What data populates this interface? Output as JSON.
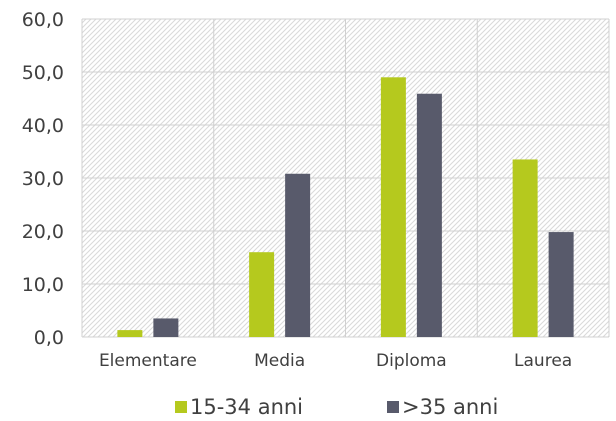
{
  "chart_data": {
    "type": "bar",
    "categories": [
      "Elementare",
      "Media",
      "Diploma",
      "Laurea"
    ],
    "series": [
      {
        "name": "15-34 anni",
        "color": "#b5c91e",
        "values": [
          1.3,
          16.0,
          49.0,
          33.5
        ]
      },
      {
        "name": ">35 anni",
        "color": "#585a6b",
        "values": [
          3.5,
          30.8,
          45.9,
          19.8
        ]
      }
    ],
    "y_ticks": [
      "0,0",
      "10,0",
      "20,0",
      "30,0",
      "40,0",
      "50,0",
      "60,0"
    ],
    "ylim": [
      0,
      60
    ],
    "grid": true,
    "legend_position": "bottom",
    "title": "",
    "xlabel": "",
    "ylabel": ""
  }
}
